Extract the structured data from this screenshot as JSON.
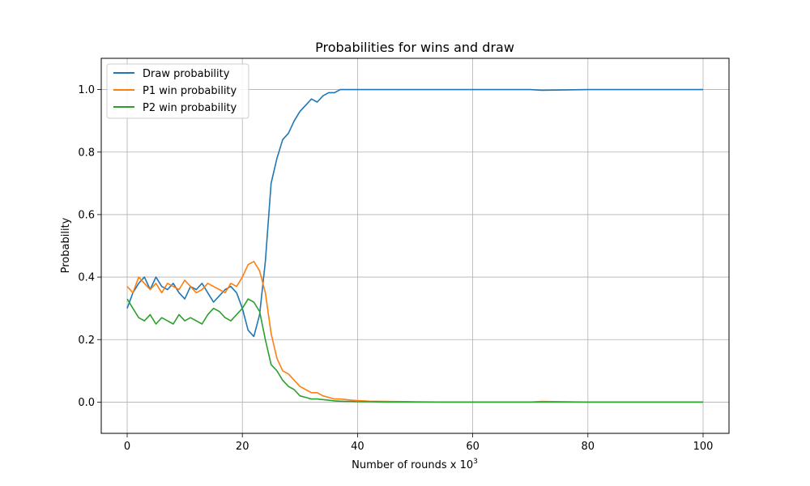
{
  "chart_data": {
    "type": "line",
    "title": "Probabilities for wins and draw",
    "xlabel_prefix": "Number of rounds x 10",
    "xlabel_exponent": "3",
    "ylabel": "Probability",
    "xlim": [
      -4.5,
      104.5
    ],
    "ylim": [
      -0.1,
      1.1
    ],
    "xticks": [
      0,
      20,
      40,
      60,
      80,
      100
    ],
    "xtick_labels": [
      "0",
      "20",
      "40",
      "60",
      "80",
      "100"
    ],
    "yticks": [
      0.0,
      0.2,
      0.4,
      0.6,
      0.8,
      1.0
    ],
    "ytick_labels": [
      "0.0",
      "0.2",
      "0.4",
      "0.6",
      "0.8",
      "1.0"
    ],
    "grid": true,
    "legend_position": "top-left",
    "series": [
      {
        "name": "Draw probability",
        "color": "#1f77b4",
        "x": [
          0,
          1,
          2,
          3,
          4,
          5,
          6,
          7,
          8,
          9,
          10,
          11,
          12,
          13,
          14,
          15,
          16,
          17,
          18,
          19,
          20,
          21,
          22,
          23,
          24,
          25,
          26,
          27,
          28,
          29,
          30,
          31,
          32,
          33,
          34,
          35,
          36,
          37,
          38,
          39,
          40,
          42,
          45,
          50,
          55,
          60,
          70,
          72,
          80,
          90,
          100
        ],
        "values": [
          0.3,
          0.35,
          0.38,
          0.4,
          0.36,
          0.4,
          0.37,
          0.36,
          0.38,
          0.35,
          0.33,
          0.37,
          0.36,
          0.38,
          0.35,
          0.32,
          0.34,
          0.36,
          0.37,
          0.35,
          0.3,
          0.23,
          0.21,
          0.28,
          0.45,
          0.7,
          0.78,
          0.84,
          0.86,
          0.9,
          0.93,
          0.95,
          0.97,
          0.96,
          0.98,
          0.99,
          0.99,
          1.0,
          1.0,
          1.0,
          1.0,
          1.0,
          1.0,
          1.0,
          1.0,
          1.0,
          1.0,
          0.998,
          1.0,
          1.0,
          1.0
        ]
      },
      {
        "name": "P1 win probability",
        "color": "#ff7f0e",
        "x": [
          0,
          1,
          2,
          3,
          4,
          5,
          6,
          7,
          8,
          9,
          10,
          11,
          12,
          13,
          14,
          15,
          16,
          17,
          18,
          19,
          20,
          21,
          22,
          23,
          24,
          25,
          26,
          27,
          28,
          29,
          30,
          31,
          32,
          33,
          34,
          35,
          36,
          37,
          38,
          39,
          40,
          42,
          45,
          50,
          55,
          60,
          70,
          72,
          80,
          90,
          100
        ],
        "values": [
          0.37,
          0.35,
          0.4,
          0.38,
          0.36,
          0.38,
          0.35,
          0.38,
          0.37,
          0.36,
          0.39,
          0.37,
          0.35,
          0.36,
          0.38,
          0.37,
          0.36,
          0.35,
          0.38,
          0.37,
          0.4,
          0.44,
          0.45,
          0.42,
          0.35,
          0.22,
          0.14,
          0.1,
          0.09,
          0.07,
          0.05,
          0.04,
          0.03,
          0.03,
          0.02,
          0.015,
          0.01,
          0.01,
          0.008,
          0.006,
          0.005,
          0.003,
          0.002,
          0.001,
          0.0,
          0.0,
          0.0,
          0.002,
          0.0,
          0.0,
          0.0
        ]
      },
      {
        "name": "P2 win probability",
        "color": "#2ca02c",
        "x": [
          0,
          1,
          2,
          3,
          4,
          5,
          6,
          7,
          8,
          9,
          10,
          11,
          12,
          13,
          14,
          15,
          16,
          17,
          18,
          19,
          20,
          21,
          22,
          23,
          24,
          25,
          26,
          27,
          28,
          29,
          30,
          31,
          32,
          33,
          34,
          35,
          36,
          37,
          38,
          39,
          40,
          42,
          45,
          50,
          55,
          60,
          70,
          72,
          80,
          90,
          100
        ],
        "values": [
          0.33,
          0.3,
          0.27,
          0.26,
          0.28,
          0.25,
          0.27,
          0.26,
          0.25,
          0.28,
          0.26,
          0.27,
          0.26,
          0.25,
          0.28,
          0.3,
          0.29,
          0.27,
          0.26,
          0.28,
          0.3,
          0.33,
          0.32,
          0.29,
          0.2,
          0.12,
          0.1,
          0.07,
          0.05,
          0.04,
          0.02,
          0.015,
          0.01,
          0.01,
          0.008,
          0.006,
          0.004,
          0.003,
          0.002,
          0.002,
          0.001,
          0.001,
          0.0,
          0.0,
          0.0,
          0.0,
          0.0,
          0.0,
          0.0,
          0.0,
          0.0
        ]
      }
    ]
  }
}
